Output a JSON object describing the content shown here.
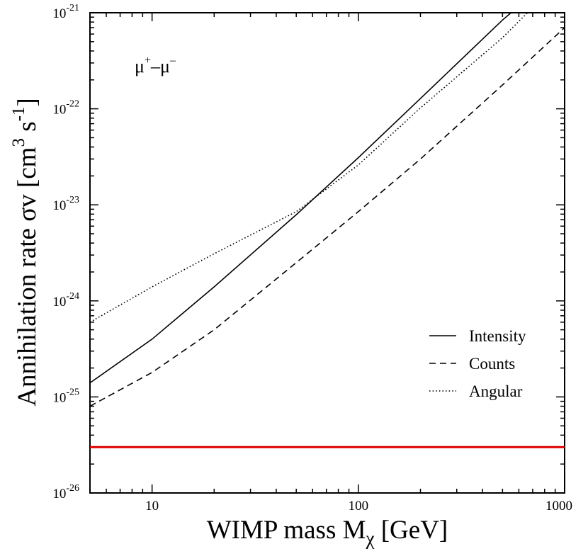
{
  "chart_data": {
    "type": "line",
    "xscale": "log",
    "yscale": "log",
    "xlim": [
      5,
      1000
    ],
    "ylim": [
      1e-26,
      1e-21
    ],
    "x_ticks": [
      {
        "value": 10,
        "label": "10"
      },
      {
        "value": 100,
        "label": "100"
      },
      {
        "value": 1000,
        "label": "1000"
      }
    ],
    "y_ticks": [
      {
        "value": 1e-26,
        "base": "10",
        "exp": "-26"
      },
      {
        "value": 1e-25,
        "base": "10",
        "exp": "-25"
      },
      {
        "value": 1e-24,
        "base": "10",
        "exp": "-24"
      },
      {
        "value": 1e-23,
        "base": "10",
        "exp": "-23"
      },
      {
        "value": 1e-22,
        "base": "10",
        "exp": "-22"
      },
      {
        "value": 1e-21,
        "base": "10",
        "exp": "-21"
      }
    ],
    "xlabel": {
      "main": "WIMP mass  M",
      "sub": "χ",
      "unit": " [GeV]"
    },
    "ylabel": {
      "main": "Annihilation rate   σv [cm",
      "sup1": "3",
      "mid": " s",
      "sup2": "-1",
      "end": "]"
    },
    "annotation": {
      "p1": "μ",
      "s1": "+",
      "dash": "–",
      "p2": "μ",
      "s2": "–"
    },
    "series": [
      {
        "name": "Intensity",
        "style": "solid",
        "color": "#000000",
        "x": [
          5,
          10,
          20,
          50,
          100,
          200,
          500,
          550
        ],
        "y": [
          1.4e-25,
          4e-25,
          1.4e-24,
          7.9e-24,
          3.1e-23,
          1.28e-22,
          8.4e-22,
          1e-21
        ]
      },
      {
        "name": "Counts",
        "style": "dashed",
        "color": "#000000",
        "x": [
          5,
          10,
          20,
          50,
          100,
          200,
          500,
          1000
        ],
        "y": [
          8e-26,
          1.8e-25,
          5e-25,
          2.5e-24,
          8.5e-24,
          3e-23,
          1.77e-22,
          7e-22
        ]
      },
      {
        "name": "Angular",
        "style": "dotted",
        "color": "#000000",
        "x": [
          5,
          10,
          20,
          50,
          100,
          200,
          500,
          660
        ],
        "y": [
          6e-25,
          1.4e-24,
          3.1e-24,
          8.5e-24,
          2.6e-23,
          1.02e-22,
          5.5e-22,
          1e-21
        ]
      }
    ],
    "reference_line": {
      "y": 3e-26,
      "color": "#e00000"
    },
    "legend": {
      "position": "right",
      "entries": [
        "Intensity",
        "Counts",
        "Angular"
      ]
    }
  }
}
